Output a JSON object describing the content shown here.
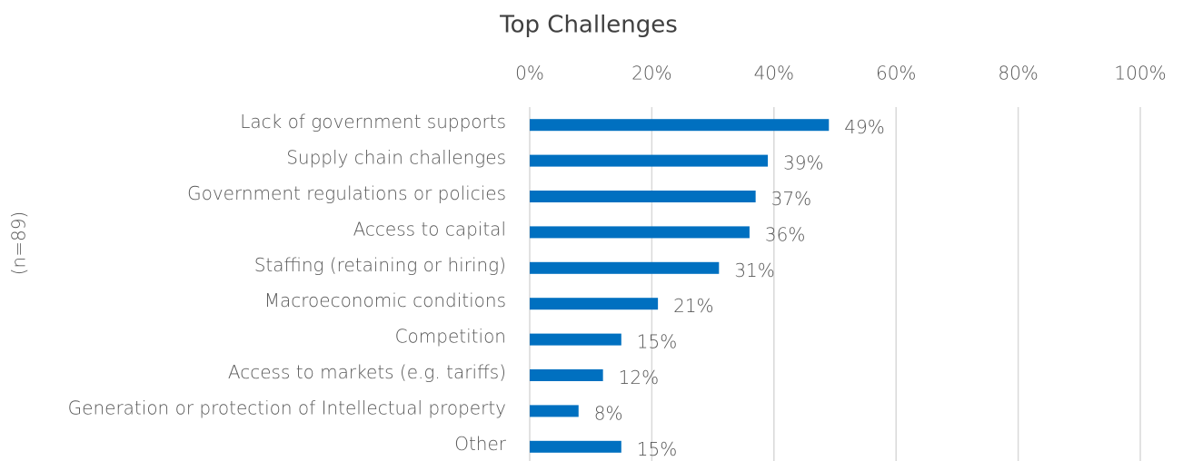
{
  "chart_data": {
    "type": "hbar",
    "title": "Top Challenges",
    "y_label": "(n=89)",
    "categories": [
      "Lack of government supports",
      "Supply chain challenges",
      "Government regulations or policies",
      "Access to capital",
      "Staffing (retaining or hiring)",
      "Macroeconomic conditions",
      "Competition",
      "Access to markets (e.g. tariffs)",
      "Generation or protection of Intellectual property",
      "Other"
    ],
    "values": [
      49,
      39,
      37,
      36,
      31,
      21,
      15,
      12,
      8,
      15
    ],
    "value_labels": [
      "49%",
      "39%",
      "37%",
      "36%",
      "31%",
      "21%",
      "15%",
      "12%",
      "8%",
      "15%"
    ],
    "color": "#0070c0",
    "xlim": [
      0,
      100
    ],
    "xticks": [
      {
        "value": 0,
        "label": "0%"
      },
      {
        "value": 20,
        "label": "20%"
      },
      {
        "value": 40,
        "label": "40%"
      },
      {
        "value": 60,
        "label": "60%"
      },
      {
        "value": 80,
        "label": "80%"
      },
      {
        "value": 100,
        "label": "100%"
      }
    ],
    "grid": true
  }
}
